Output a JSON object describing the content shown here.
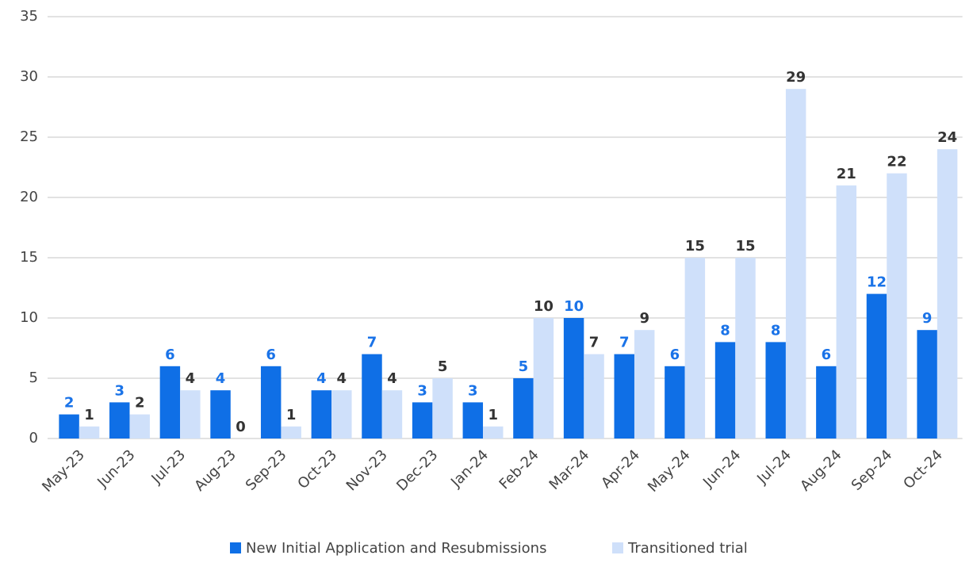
{
  "chart_data": {
    "type": "bar",
    "categories": [
      "May-23",
      "Jun-23",
      "Jul-23",
      "Aug-23",
      "Sep-23",
      "Oct-23",
      "Nov-23",
      "Dec-23",
      "Jan-24",
      "Feb-24",
      "Mar-24",
      "Apr-24",
      "May-24",
      "Jun-24",
      "Jul-24",
      "Aug-24",
      "Sep-24",
      "Oct-24"
    ],
    "series": [
      {
        "name": "New Initial Application and Resubmissions",
        "color": "#0f6fe6",
        "label_color": "#1a73e8",
        "values": [
          2,
          3,
          6,
          4,
          6,
          4,
          7,
          3,
          3,
          5,
          10,
          7,
          6,
          8,
          8,
          6,
          12,
          9
        ]
      },
      {
        "name": "Transitioned trial",
        "color": "#cfe0fa",
        "label_color": "#333333",
        "values": [
          1,
          2,
          4,
          0,
          1,
          4,
          4,
          5,
          1,
          10,
          7,
          9,
          15,
          15,
          29,
          21,
          22,
          24
        ]
      }
    ],
    "ylim": [
      0,
      35
    ],
    "yticks": [
      0,
      5,
      10,
      15,
      20,
      25,
      30,
      35
    ],
    "grid": true,
    "legend": "bottom"
  }
}
